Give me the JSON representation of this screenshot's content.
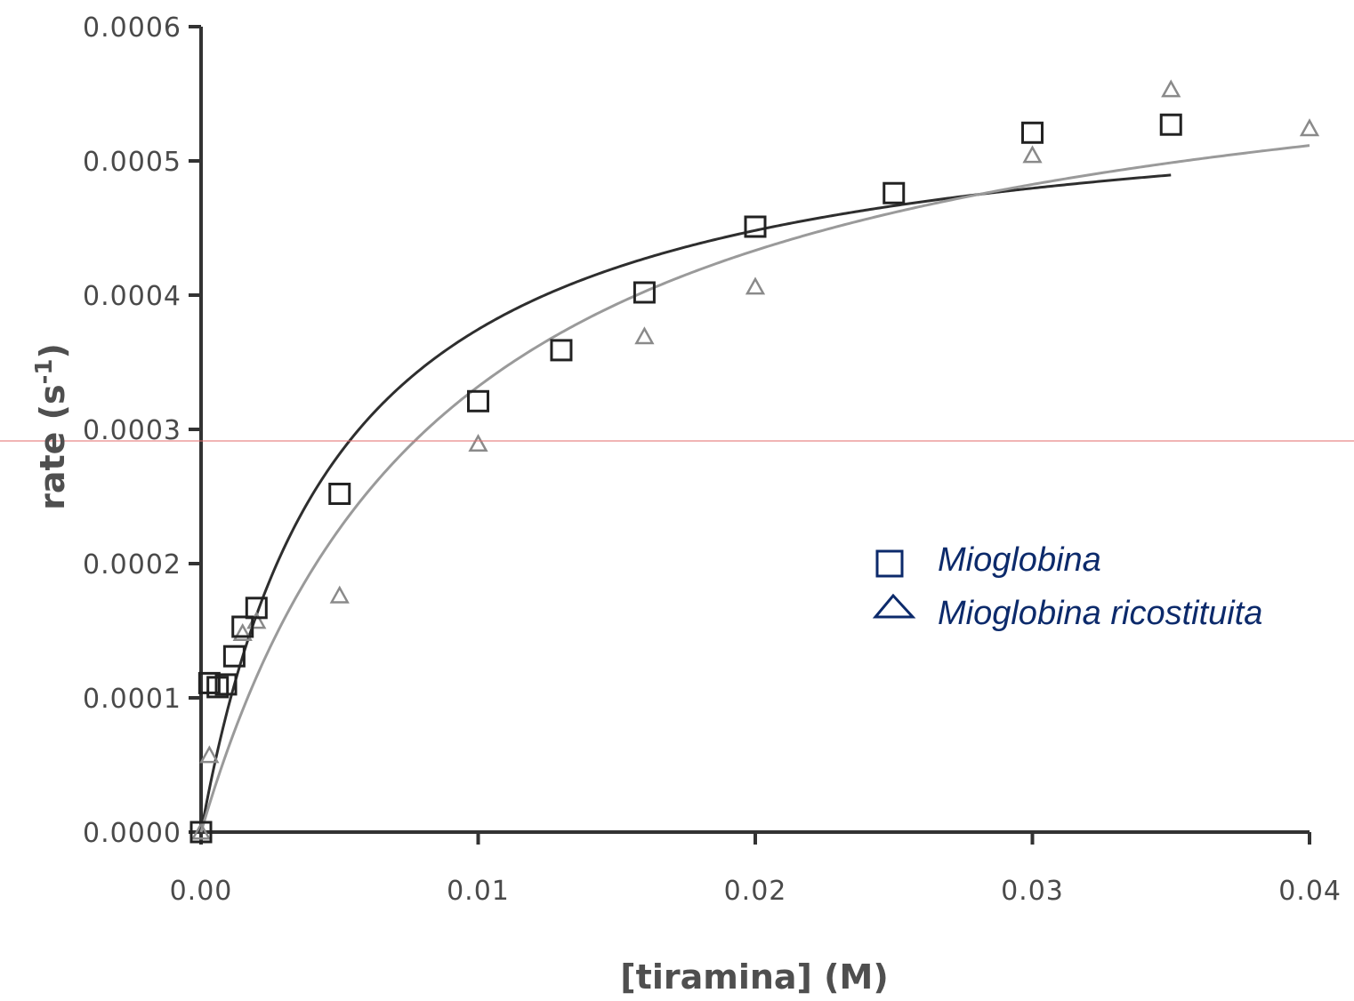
{
  "chart_data": {
    "type": "scatter",
    "xlabel": "[tiramina] (M)",
    "ylabel": "rate (s",
    "ylabel_sup": "-1",
    "ylabel_close": ")",
    "xlim": [
      0,
      0.04
    ],
    "ylim": [
      0,
      0.0006
    ],
    "x_ticks": [
      0,
      0.01,
      0.02,
      0.03,
      0.04
    ],
    "x_tick_labels": [
      "0.00",
      "0.01",
      "0.02",
      "0.03",
      "0.04"
    ],
    "y_ticks": [
      0,
      0.0001,
      0.0002,
      0.0003,
      0.0004,
      0.0005,
      0.0006
    ],
    "y_tick_labels": [
      "0.0000",
      "0.0001",
      "0.0002",
      "0.0003",
      "0.0004",
      "0.0005",
      "0.0006"
    ],
    "grid": false,
    "legend_position": "right",
    "series": [
      {
        "name": "Mioglobina",
        "marker": "square",
        "color": "#222222",
        "x": [
          0,
          0.0003,
          0.0006,
          0.0009,
          0.0012,
          0.0015,
          0.002,
          0.005,
          0.01,
          0.013,
          0.016,
          0.02,
          0.025,
          0.03,
          0.035
        ],
        "y": [
          0.0,
          0.000111,
          0.000108,
          0.00011,
          0.000131,
          0.000153,
          0.000167,
          0.000252,
          0.000321,
          0.000359,
          0.000402,
          0.000451,
          0.000476,
          0.000521,
          0.000527
        ],
        "fit": {
          "vmax": 0.000558,
          "km": 0.0049,
          "x_end": 0.035
        }
      },
      {
        "name": "Mioglobina ricostituita",
        "marker": "triangle",
        "color": "#8a8a8a",
        "x": [
          0,
          0.0003,
          0.0015,
          0.002,
          0.005,
          0.01,
          0.016,
          0.02,
          0.03,
          0.035,
          0.04
        ],
        "y": [
          0.0,
          5.7e-05,
          0.000148,
          0.000157,
          0.000176,
          0.000289,
          0.000369,
          0.000406,
          0.000504,
          0.000553,
          0.000524
        ],
        "fit": {
          "vmax": 0.000624,
          "km": 0.0088,
          "x_end": 0.04
        }
      }
    ]
  },
  "legend": {
    "color": "#0c2a6b"
  },
  "colors": {
    "axis": "#333333",
    "fit_dark": "#2e2e2e",
    "fit_light": "#9a9a9a",
    "red_line": "#e36b6b"
  }
}
